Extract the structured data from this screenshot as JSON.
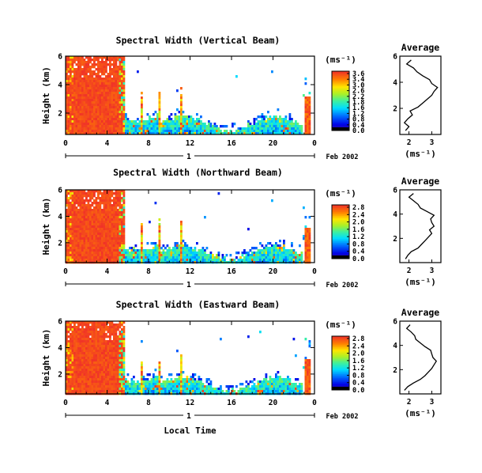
{
  "chart_data": [
    {
      "type": "heatmap",
      "title": "Spectral Width (Vertical Beam)",
      "ylabel": "Height (km)",
      "x_ticks": [
        "0",
        "4",
        "8",
        "12",
        "16",
        "20",
        "0"
      ],
      "y_ticks": [
        "2",
        "4",
        "6"
      ],
      "xlim": [
        0,
        24
      ],
      "ylim": [
        0.5,
        6
      ],
      "date_label": "Feb 2002",
      "day_marker": "1",
      "colorbar": {
        "unit": "(ms⁻¹)",
        "ticks": [
          "3.6",
          "3.4",
          "3.0",
          "2.6",
          "2.2",
          "1.8",
          "1.6",
          "1.2",
          "0.8",
          "0.4",
          "0.0"
        ],
        "range": [
          0,
          3.8
        ]
      },
      "average_profile": {
        "title": "Average",
        "xlabel": "(ms⁻¹)",
        "x_ticks": [
          "2",
          "3"
        ],
        "y_ticks": [
          "2",
          "4",
          "6"
        ],
        "xlim": [
          1.6,
          3.4
        ],
        "ylim": [
          0,
          6
        ],
        "height_km": [
          0.3,
          0.6,
          0.9,
          1.2,
          1.5,
          1.8,
          2.1,
          2.4,
          2.7,
          3.0,
          3.3,
          3.6,
          3.9,
          4.2,
          4.5,
          4.8,
          5.1,
          5.4,
          5.7
        ],
        "width_ms": [
          1.85,
          2.0,
          1.8,
          1.95,
          2.15,
          2.05,
          2.4,
          2.6,
          2.8,
          3.0,
          3.1,
          3.25,
          3.0,
          2.9,
          2.6,
          2.35,
          2.2,
          1.9,
          2.1
        ]
      }
    },
    {
      "type": "heatmap",
      "title": "Spectral Width (Northward Beam)",
      "ylabel": "Height (km)",
      "x_ticks": [
        "0",
        "4",
        "8",
        "12",
        "16",
        "20",
        "0"
      ],
      "y_ticks": [
        "2",
        "4",
        "6"
      ],
      "xlim": [
        0,
        24
      ],
      "ylim": [
        0.5,
        6
      ],
      "date_label": "Feb 2002",
      "day_marker": "1",
      "colorbar": {
        "unit": "(ms⁻¹)",
        "ticks": [
          "2.8",
          "2.4",
          "2.0",
          "1.6",
          "1.2",
          "0.8",
          "0.4",
          "0.0"
        ],
        "range": [
          0,
          3.0
        ]
      },
      "average_profile": {
        "title": "Average",
        "xlabel": "(ms⁻¹)",
        "x_ticks": [
          "2",
          "3"
        ],
        "y_ticks": [
          "2",
          "4",
          "6"
        ],
        "xlim": [
          1.6,
          3.4
        ],
        "ylim": [
          0,
          6
        ],
        "height_km": [
          0.3,
          0.6,
          0.9,
          1.2,
          1.5,
          1.8,
          2.1,
          2.4,
          2.7,
          3.0,
          3.3,
          3.6,
          3.9,
          4.2,
          4.5,
          4.8,
          5.1,
          5.4,
          5.7
        ],
        "width_ms": [
          1.85,
          1.95,
          2.1,
          2.4,
          2.55,
          2.7,
          2.85,
          3.0,
          2.9,
          3.1,
          3.0,
          2.95,
          3.1,
          2.8,
          2.5,
          2.4,
          2.2,
          2.0,
          2.2
        ]
      }
    },
    {
      "type": "heatmap",
      "title": "Spectral Width (Eastward Beam)",
      "ylabel": "Height (km)",
      "xlabel": "Local Time",
      "x_ticks": [
        "0",
        "4",
        "8",
        "12",
        "16",
        "20",
        "0"
      ],
      "y_ticks": [
        "2",
        "4",
        "6"
      ],
      "xlim": [
        0,
        24
      ],
      "ylim": [
        0.5,
        6
      ],
      "date_label": "Feb 2002",
      "day_marker": "1",
      "colorbar": {
        "unit": "(ms⁻¹)",
        "ticks": [
          "2.8",
          "2.4",
          "2.0",
          "1.6",
          "1.2",
          "0.8",
          "0.4",
          "0.0"
        ],
        "range": [
          0,
          3.0
        ]
      },
      "average_profile": {
        "title": "Average",
        "xlabel": "(ms⁻¹)",
        "x_ticks": [
          "2",
          "3"
        ],
        "y_ticks": [
          "2",
          "4",
          "6"
        ],
        "xlim": [
          1.6,
          3.4
        ],
        "ylim": [
          0,
          6
        ],
        "height_km": [
          0.3,
          0.6,
          0.9,
          1.2,
          1.5,
          1.8,
          2.1,
          2.4,
          2.7,
          3.0,
          3.3,
          3.6,
          3.9,
          4.2,
          4.5,
          4.8,
          5.1,
          5.4,
          5.7
        ],
        "width_ms": [
          1.8,
          1.95,
          2.2,
          2.5,
          2.7,
          2.85,
          3.0,
          3.1,
          3.2,
          3.05,
          3.0,
          2.95,
          2.7,
          2.5,
          2.3,
          2.25,
          2.1,
          1.9,
          2.05
        ]
      }
    }
  ]
}
